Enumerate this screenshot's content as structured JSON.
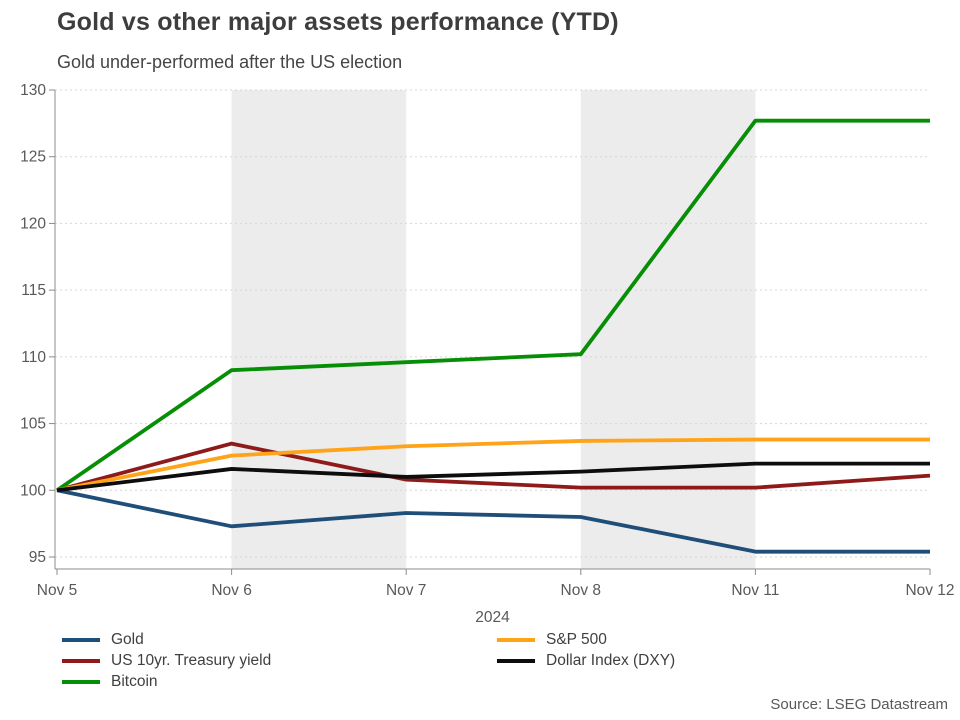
{
  "header": {
    "title": "Gold vs other major assets performance (YTD)",
    "subtitle": "Gold under-performed after the US election"
  },
  "chart_data": {
    "type": "line",
    "title": "Gold vs other major assets performance (YTD)",
    "subtitle": "Gold under-performed after the US election",
    "x_categories": [
      "Nov 5",
      "Nov 6",
      "Nov 7",
      "Nov 8",
      "Nov 11",
      "Nov 12"
    ],
    "x_axis_label": "2024",
    "ylim": [
      95,
      130
    ],
    "yticks": [
      95,
      100,
      105,
      110,
      115,
      120,
      125,
      130
    ],
    "grid": "horizontal-dotted",
    "legend_position": "bottom",
    "shaded_bands": [
      {
        "from": "Nov 6",
        "to": "Nov 7"
      },
      {
        "from": "Nov 8",
        "to": "Nov 11"
      }
    ],
    "series": [
      {
        "name": "Gold",
        "color": "#1f4e79",
        "values": [
          100,
          97.3,
          98.3,
          98.0,
          95.4,
          95.4
        ]
      },
      {
        "name": "US 10yr. Treasury yield",
        "color": "#8e1a1a",
        "values": [
          100,
          103.5,
          100.8,
          100.2,
          100.2,
          101.1
        ]
      },
      {
        "name": "Bitcoin",
        "color": "#068e06",
        "values": [
          100,
          109.0,
          109.6,
          110.2,
          127.7,
          127.7
        ]
      },
      {
        "name": "S&P 500",
        "color": "#ffa319",
        "values": [
          100,
          102.6,
          103.3,
          103.7,
          103.8,
          103.8
        ]
      },
      {
        "name": "Dollar Index (DXY)",
        "color": "#0d0d0d",
        "values": [
          100,
          101.6,
          101.0,
          101.4,
          102.0,
          102.0
        ]
      }
    ],
    "colors": {
      "band": "#ececec",
      "gridline": "#d6d6d6",
      "axis": "#8c8c8c",
      "tick_label": "#595959"
    }
  },
  "legend": {
    "columns": [
      {
        "items": [
          {
            "label": "Gold",
            "color": "#1f4e79"
          },
          {
            "label": "US 10yr. Treasury yield",
            "color": "#8e1a1a"
          },
          {
            "label": "Bitcoin",
            "color": "#068e06"
          }
        ]
      },
      {
        "items": [
          {
            "label": "S&P 500",
            "color": "#ffa319"
          },
          {
            "label": "Dollar Index (DXY)",
            "color": "#0d0d0d"
          }
        ]
      }
    ]
  },
  "footer": {
    "source": "Source: LSEG Datastream"
  }
}
